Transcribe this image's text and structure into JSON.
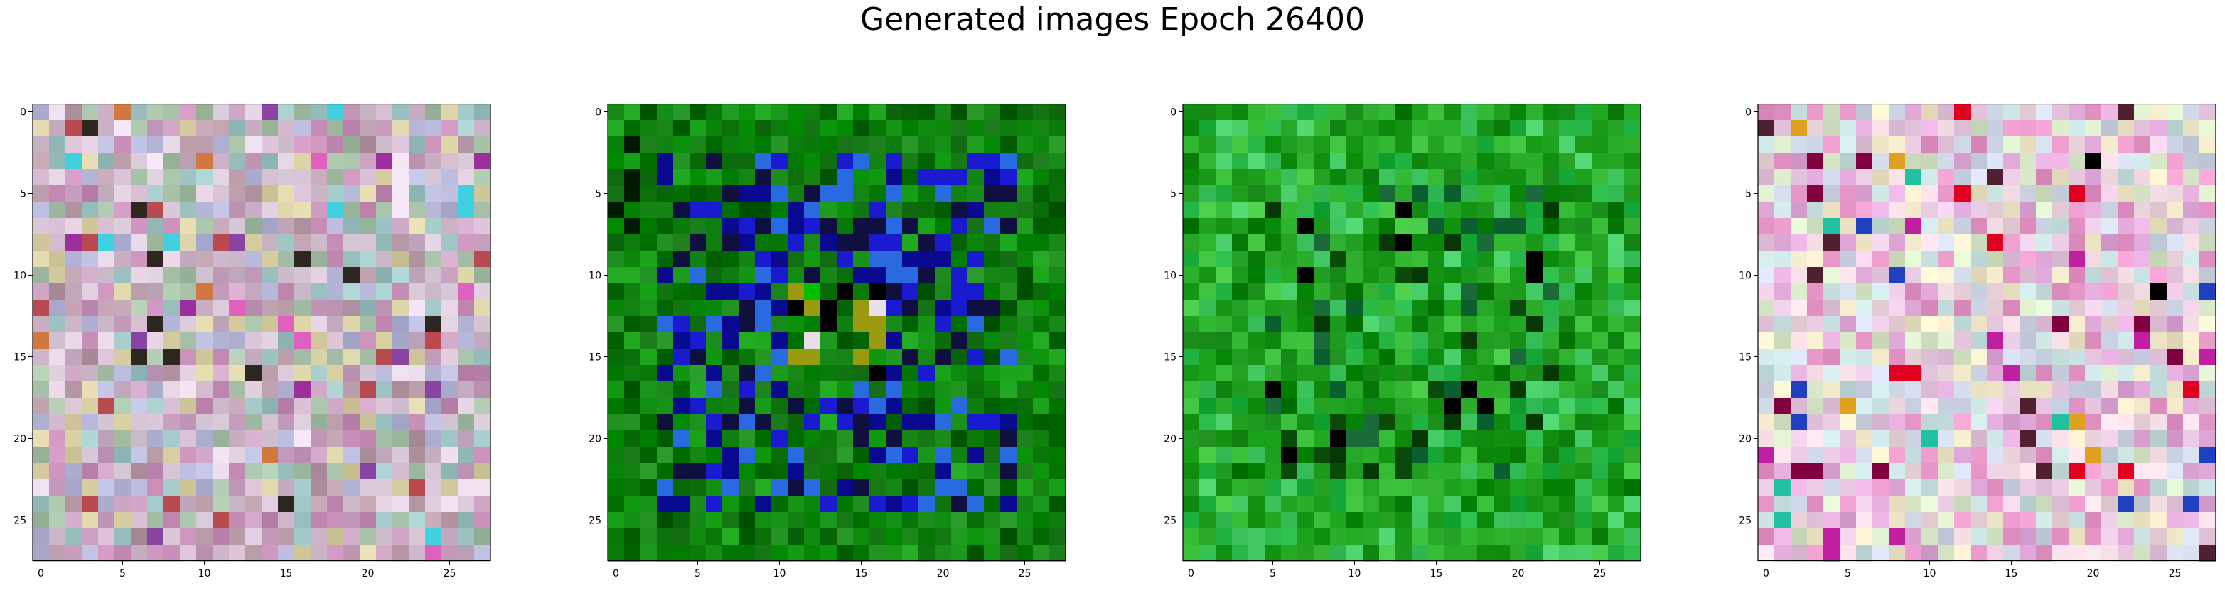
{
  "figure": {
    "title": "Generated images Epoch 26400"
  },
  "chart_data": [
    {
      "type": "heatmap",
      "grid_size": [
        28,
        28
      ],
      "xlim": [
        -0.5,
        27.5
      ],
      "ylim": [
        27.5,
        -0.5
      ],
      "x_ticks": [
        "0",
        "5",
        "10",
        "15",
        "20",
        "25"
      ],
      "y_ticks": [
        "0",
        "5",
        "10",
        "15",
        "20",
        "25"
      ],
      "palette": [
        "#cdb4c8",
        "#d9c6d6",
        "#b89aa8",
        "#e3d5e4",
        "#a7c0a8",
        "#c9a0c0",
        "#d8cfa5",
        "#b6b6d8",
        "#c890b8",
        "#9ec4c4"
      ],
      "accents": [
        "#9b2f9b",
        "#2e2620",
        "#e060c0",
        "#b84a50",
        "#40d0e0",
        "#d07840",
        "#8844a0"
      ]
    },
    {
      "type": "heatmap",
      "grid_size": [
        28,
        28
      ],
      "xlim": [
        -0.5,
        27.5
      ],
      "ylim": [
        27.5,
        -0.5
      ],
      "x_ticks": [
        "0",
        "5",
        "10",
        "15",
        "20",
        "25"
      ],
      "y_ticks": [
        "0",
        "5",
        "10",
        "15",
        "20",
        "25"
      ],
      "palette": [
        "#0a7a0a",
        "#0f8c0f",
        "#066006",
        "#129a12",
        "#0c6f0c",
        "#1a8a1a"
      ],
      "accents": [
        "#1a1ad0",
        "#0a0a90",
        "#2a6ae0",
        "#101040",
        "#00c000",
        "#20e060",
        "#e8e0e8",
        "#9a9a10",
        "#000000"
      ]
    },
    {
      "type": "heatmap",
      "grid_size": [
        28,
        28
      ],
      "xlim": [
        -0.5,
        27.5
      ],
      "ylim": [
        27.5,
        -0.5
      ],
      "x_ticks": [
        "0",
        "5",
        "10",
        "15",
        "20",
        "25"
      ],
      "y_ticks": [
        "0",
        "5",
        "10",
        "15",
        "20",
        "25"
      ],
      "palette": [
        "#22a022",
        "#1c9a1c",
        "#2bb02b",
        "#139013",
        "#3cc03c",
        "#0e800e",
        "#42c862",
        "#20b040"
      ],
      "accents": [
        "#063806",
        "#0a4a0a",
        "#000000",
        "#1a6a3a",
        "#0b5f2f"
      ]
    },
    {
      "type": "heatmap",
      "grid_size": [
        28,
        28
      ],
      "xlim": [
        -0.5,
        27.5
      ],
      "ylim": [
        27.5,
        -0.5
      ],
      "x_ticks": [
        "0",
        "5",
        "10",
        "15",
        "20",
        "25"
      ],
      "y_ticks": [
        "0",
        "5",
        "10",
        "15",
        "20",
        "25"
      ],
      "palette": [
        "#e8c8e0",
        "#d8e8c8",
        "#f0d8e0",
        "#e0a8d8",
        "#c8e0e0",
        "#f0e8c8",
        "#e898c8",
        "#d0d8e8"
      ],
      "accents": [
        "#c020a0",
        "#800040",
        "#000000",
        "#2040c0",
        "#e0a020",
        "#20c0a0",
        "#e00020",
        "#502030"
      ]
    }
  ]
}
